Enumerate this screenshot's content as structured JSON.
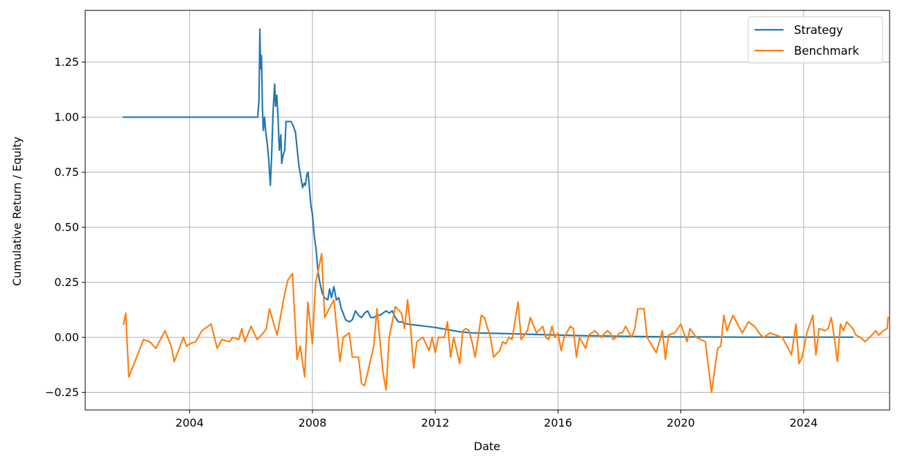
{
  "chart_data": {
    "type": "line",
    "title": "",
    "xlabel": "Date",
    "ylabel": "Cumulative Return / Equity",
    "xlim": [
      2000.6,
      2026.8
    ],
    "ylim": [
      -0.33,
      1.485
    ],
    "grid": true,
    "legend_placement": "top-right",
    "x_ticks": [
      {
        "value": 2004,
        "label": "2004"
      },
      {
        "value": 2008,
        "label": "2008"
      },
      {
        "value": 2012,
        "label": "2012"
      },
      {
        "value": 2016,
        "label": "2016"
      },
      {
        "value": 2020,
        "label": "2020"
      },
      {
        "value": 2024,
        "label": "2024"
      }
    ],
    "y_ticks": [
      {
        "value": 1.25,
        "label": "1.25"
      },
      {
        "value": 1.0,
        "label": "1.00"
      },
      {
        "value": 0.75,
        "label": "0.75"
      },
      {
        "value": 0.5,
        "label": "0.50"
      },
      {
        "value": 0.25,
        "label": "0.25"
      },
      {
        "value": 0.0,
        "label": "0.00"
      },
      {
        "value": -0.25,
        "label": "−0.25"
      }
    ],
    "series": [
      {
        "name": "Strategy",
        "color": "#1f77b4",
        "points": [
          [
            2001.85,
            1.0
          ],
          [
            2003.0,
            1.0
          ],
          [
            2004.5,
            1.0
          ],
          [
            2006.0,
            1.0
          ],
          [
            2006.22,
            1.0
          ],
          [
            2006.26,
            1.08
          ],
          [
            2006.29,
            1.4
          ],
          [
            2006.31,
            1.22
          ],
          [
            2006.34,
            1.28
          ],
          [
            2006.37,
            1.05
          ],
          [
            2006.4,
            0.94
          ],
          [
            2006.44,
            1.0
          ],
          [
            2006.48,
            0.93
          ],
          [
            2006.53,
            0.88
          ],
          [
            2006.58,
            0.8
          ],
          [
            2006.63,
            0.69
          ],
          [
            2006.67,
            0.82
          ],
          [
            2006.72,
            1.03
          ],
          [
            2006.77,
            1.15
          ],
          [
            2006.8,
            1.05
          ],
          [
            2006.84,
            1.1
          ],
          [
            2006.88,
            1.0
          ],
          [
            2006.92,
            0.85
          ],
          [
            2006.97,
            0.92
          ],
          [
            2007.0,
            0.79
          ],
          [
            2007.05,
            0.83
          ],
          [
            2007.1,
            0.85
          ],
          [
            2007.14,
            0.98
          ],
          [
            2007.2,
            0.98
          ],
          [
            2007.3,
            0.98
          ],
          [
            2007.38,
            0.96
          ],
          [
            2007.45,
            0.93
          ],
          [
            2007.5,
            0.86
          ],
          [
            2007.56,
            0.78
          ],
          [
            2007.62,
            0.73
          ],
          [
            2007.68,
            0.68
          ],
          [
            2007.73,
            0.7
          ],
          [
            2007.77,
            0.69
          ],
          [
            2007.82,
            0.74
          ],
          [
            2007.86,
            0.75
          ],
          [
            2007.9,
            0.68
          ],
          [
            2007.95,
            0.6
          ],
          [
            2008.0,
            0.56
          ],
          [
            2008.06,
            0.46
          ],
          [
            2008.12,
            0.4
          ],
          [
            2008.18,
            0.3
          ],
          [
            2008.24,
            0.25
          ],
          [
            2008.32,
            0.2
          ],
          [
            2008.4,
            0.18
          ],
          [
            2008.5,
            0.17
          ],
          [
            2008.56,
            0.22
          ],
          [
            2008.62,
            0.18
          ],
          [
            2008.7,
            0.23
          ],
          [
            2008.78,
            0.17
          ],
          [
            2008.86,
            0.18
          ],
          [
            2008.94,
            0.13
          ],
          [
            2009.0,
            0.11
          ],
          [
            2009.08,
            0.08
          ],
          [
            2009.2,
            0.07
          ],
          [
            2009.3,
            0.08
          ],
          [
            2009.4,
            0.12
          ],
          [
            2009.5,
            0.1
          ],
          [
            2009.6,
            0.09
          ],
          [
            2009.7,
            0.11
          ],
          [
            2009.8,
            0.12
          ],
          [
            2009.9,
            0.09
          ],
          [
            2010.0,
            0.09
          ],
          [
            2010.1,
            0.1
          ],
          [
            2010.2,
            0.1
          ],
          [
            2010.3,
            0.11
          ],
          [
            2010.4,
            0.12
          ],
          [
            2010.5,
            0.11
          ],
          [
            2010.6,
            0.12
          ],
          [
            2010.7,
            0.09
          ],
          [
            2010.8,
            0.07
          ],
          [
            2010.9,
            0.07
          ],
          [
            2011.1,
            0.06
          ],
          [
            2011.4,
            0.055
          ],
          [
            2011.7,
            0.05
          ],
          [
            2012.0,
            0.045
          ],
          [
            2012.4,
            0.035
          ],
          [
            2012.8,
            0.025
          ],
          [
            2013.2,
            0.02
          ],
          [
            2014.0,
            0.018
          ],
          [
            2015.0,
            0.014
          ],
          [
            2016.0,
            0.01
          ],
          [
            2017.0,
            0.007
          ],
          [
            2018.0,
            0.005
          ],
          [
            2019.0,
            0.003
          ],
          [
            2020.0,
            0.002
          ],
          [
            2021.0,
            0.002
          ],
          [
            2022.0,
            0.001
          ],
          [
            2023.0,
            0.001
          ],
          [
            2024.0,
            0.001
          ],
          [
            2025.6,
            0.001
          ]
        ]
      },
      {
        "name": "Benchmark",
        "color": "#ff7f0e",
        "points": [
          [
            2001.85,
            0.06
          ],
          [
            2001.92,
            0.11
          ],
          [
            2002.02,
            -0.18
          ],
          [
            2002.5,
            -0.01
          ],
          [
            2002.7,
            -0.02
          ],
          [
            2002.9,
            -0.05
          ],
          [
            2003.2,
            0.03
          ],
          [
            2003.4,
            -0.04
          ],
          [
            2003.5,
            -0.11
          ],
          [
            2003.8,
            0.0
          ],
          [
            2003.9,
            -0.04
          ],
          [
            2004.0,
            -0.03
          ],
          [
            2004.2,
            -0.02
          ],
          [
            2004.4,
            0.03
          ],
          [
            2004.7,
            0.06
          ],
          [
            2004.9,
            -0.05
          ],
          [
            2005.05,
            -0.01
          ],
          [
            2005.3,
            -0.02
          ],
          [
            2005.4,
            0.0
          ],
          [
            2005.6,
            -0.01
          ],
          [
            2005.7,
            0.04
          ],
          [
            2005.8,
            -0.02
          ],
          [
            2006.0,
            0.05
          ],
          [
            2006.2,
            -0.01
          ],
          [
            2006.4,
            0.02
          ],
          [
            2006.5,
            0.04
          ],
          [
            2006.6,
            0.13
          ],
          [
            2006.85,
            0.01
          ],
          [
            2007.1,
            0.2
          ],
          [
            2007.2,
            0.26
          ],
          [
            2007.35,
            0.29
          ],
          [
            2007.5,
            -0.1
          ],
          [
            2007.6,
            -0.04
          ],
          [
            2007.75,
            -0.18
          ],
          [
            2007.85,
            0.16
          ],
          [
            2008.0,
            -0.03
          ],
          [
            2008.1,
            0.24
          ],
          [
            2008.3,
            0.38
          ],
          [
            2008.4,
            0.09
          ],
          [
            2008.7,
            0.17
          ],
          [
            2008.9,
            -0.11
          ],
          [
            2009.0,
            0.0
          ],
          [
            2009.2,
            0.02
          ],
          [
            2009.3,
            -0.09
          ],
          [
            2009.5,
            -0.09
          ],
          [
            2009.6,
            -0.21
          ],
          [
            2009.7,
            -0.22
          ],
          [
            2010.0,
            -0.04
          ],
          [
            2010.1,
            0.13
          ],
          [
            2010.3,
            -0.16
          ],
          [
            2010.4,
            -0.24
          ],
          [
            2010.5,
            0.0
          ],
          [
            2010.7,
            0.14
          ],
          [
            2010.9,
            0.11
          ],
          [
            2011.0,
            0.04
          ],
          [
            2011.1,
            0.17
          ],
          [
            2011.2,
            0.04
          ],
          [
            2011.3,
            -0.14
          ],
          [
            2011.4,
            -0.02
          ],
          [
            2011.6,
            0.0
          ],
          [
            2011.8,
            -0.06
          ],
          [
            2011.9,
            0.0
          ],
          [
            2012.0,
            -0.07
          ],
          [
            2012.1,
            0.0
          ],
          [
            2012.3,
            0.0
          ],
          [
            2012.4,
            0.07
          ],
          [
            2012.5,
            -0.09
          ],
          [
            2012.6,
            0.0
          ],
          [
            2012.8,
            -0.12
          ],
          [
            2012.9,
            0.03
          ],
          [
            2013.0,
            0.04
          ],
          [
            2013.1,
            0.03
          ],
          [
            2013.2,
            -0.02
          ],
          [
            2013.3,
            -0.09
          ],
          [
            2013.4,
            0.0
          ],
          [
            2013.5,
            0.1
          ],
          [
            2013.6,
            0.09
          ],
          [
            2013.8,
            0.0
          ],
          [
            2013.9,
            -0.09
          ],
          [
            2014.1,
            -0.06
          ],
          [
            2014.2,
            -0.02
          ],
          [
            2014.3,
            -0.03
          ],
          [
            2014.4,
            0.0
          ],
          [
            2014.5,
            -0.01
          ],
          [
            2014.7,
            0.16
          ],
          [
            2014.8,
            -0.01
          ],
          [
            2015.0,
            0.03
          ],
          [
            2015.1,
            0.09
          ],
          [
            2015.3,
            0.02
          ],
          [
            2015.5,
            0.05
          ],
          [
            2015.6,
            0.0
          ],
          [
            2015.7,
            -0.01
          ],
          [
            2015.8,
            0.05
          ],
          [
            2015.9,
            0.0
          ],
          [
            2016.0,
            0.02
          ],
          [
            2016.1,
            -0.06
          ],
          [
            2016.2,
            0.0
          ],
          [
            2016.4,
            0.05
          ],
          [
            2016.5,
            0.04
          ],
          [
            2016.6,
            -0.09
          ],
          [
            2016.7,
            0.0
          ],
          [
            2016.9,
            -0.05
          ],
          [
            2017.0,
            0.01
          ],
          [
            2017.2,
            0.03
          ],
          [
            2017.4,
            0.0
          ],
          [
            2017.6,
            0.03
          ],
          [
            2017.7,
            0.02
          ],
          [
            2017.8,
            -0.01
          ],
          [
            2017.9,
            0.0
          ],
          [
            2018.0,
            0.02
          ],
          [
            2018.1,
            0.02
          ],
          [
            2018.2,
            0.05
          ],
          [
            2018.4,
            0.0
          ],
          [
            2018.5,
            0.04
          ],
          [
            2018.6,
            0.13
          ],
          [
            2018.8,
            0.13
          ],
          [
            2018.9,
            0.0
          ],
          [
            2019.2,
            -0.07
          ],
          [
            2019.4,
            0.03
          ],
          [
            2019.5,
            -0.1
          ],
          [
            2019.6,
            0.01
          ],
          [
            2019.8,
            0.02
          ],
          [
            2020.0,
            0.06
          ],
          [
            2020.2,
            -0.02
          ],
          [
            2020.3,
            0.04
          ],
          [
            2020.4,
            0.02
          ],
          [
            2020.5,
            0.0
          ],
          [
            2020.8,
            -0.02
          ],
          [
            2021.0,
            -0.25
          ],
          [
            2021.2,
            -0.05
          ],
          [
            2021.3,
            -0.04
          ],
          [
            2021.4,
            0.1
          ],
          [
            2021.5,
            0.03
          ],
          [
            2021.7,
            0.1
          ],
          [
            2022.0,
            0.02
          ],
          [
            2022.2,
            0.07
          ],
          [
            2022.4,
            0.05
          ],
          [
            2022.6,
            0.01
          ],
          [
            2022.7,
            0.0
          ],
          [
            2022.9,
            0.02
          ],
          [
            2023.1,
            0.01
          ],
          [
            2023.3,
            0.0
          ],
          [
            2023.5,
            -0.05
          ],
          [
            2023.6,
            -0.08
          ],
          [
            2023.75,
            0.06
          ],
          [
            2023.85,
            -0.12
          ],
          [
            2023.95,
            -0.09
          ],
          [
            2024.1,
            0.02
          ],
          [
            2024.3,
            0.1
          ],
          [
            2024.4,
            -0.08
          ],
          [
            2024.5,
            0.04
          ],
          [
            2024.7,
            0.03
          ],
          [
            2024.8,
            0.04
          ],
          [
            2024.9,
            0.09
          ],
          [
            2025.0,
            0.0
          ],
          [
            2025.1,
            -0.11
          ],
          [
            2025.2,
            0.06
          ],
          [
            2025.3,
            0.03
          ],
          [
            2025.4,
            0.07
          ],
          [
            2025.6,
            0.04
          ],
          [
            2025.7,
            0.01
          ],
          [
            2025.85,
            0.0
          ],
          [
            2026.0,
            -0.02
          ],
          [
            2026.15,
            0.0
          ],
          [
            2026.35,
            0.03
          ],
          [
            2026.45,
            0.01
          ],
          [
            2026.6,
            0.03
          ],
          [
            2026.72,
            0.04
          ],
          [
            2026.75,
            0.09
          ]
        ]
      }
    ]
  }
}
